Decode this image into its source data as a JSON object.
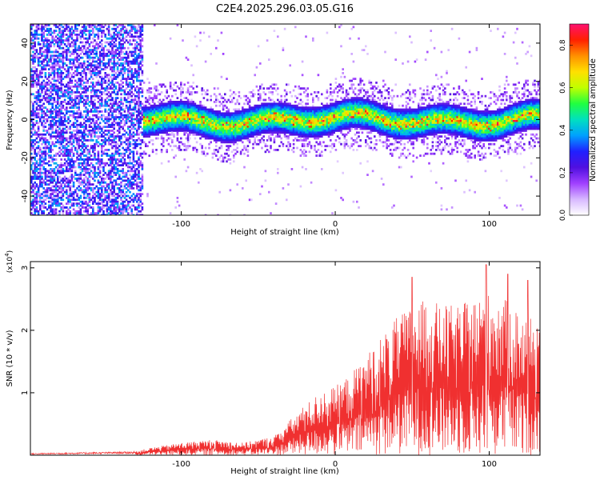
{
  "title": "C2E4.2025.296.03.05.G16",
  "chart_data": [
    {
      "type": "heatmap",
      "name": "spectrogram",
      "xlabel": "Height of straight line (km)",
      "ylabel": "Frequency (Hz)",
      "xlim": [
        -198,
        133
      ],
      "ylim": [
        -50,
        50
      ],
      "xticks": [
        -100,
        0,
        100
      ],
      "yticks": [
        40,
        20,
        0,
        -20,
        -40
      ],
      "xtick_labels": [
        "-100",
        "0",
        "100"
      ],
      "ytick_labels": [
        "40",
        "20",
        "0",
        "-20",
        "-40"
      ],
      "noise_region_x": [
        -198,
        -125
      ],
      "signal_band": {
        "center_hz": 0,
        "half_width_hz": 8,
        "x_range": [
          -125,
          133
        ]
      },
      "colorbar": {
        "label": "Normalized spectral amplitude",
        "range": [
          0.0,
          0.9
        ],
        "ticks": [
          0.0,
          0.2,
          0.4,
          0.6,
          0.8
        ],
        "tick_labels": [
          "0.0",
          "0.2",
          "0.4",
          "0.6",
          "0.8"
        ],
        "colors": [
          "#ffffff",
          "#d7b8ff",
          "#a040ff",
          "#5010e0",
          "#2020ff",
          "#00a0ff",
          "#00e0c0",
          "#20ff40",
          "#c0ff00",
          "#ffe000",
          "#ff9000",
          "#ff2000",
          "#ff1070"
        ]
      }
    },
    {
      "type": "line",
      "name": "snr",
      "xlabel": "Height of straight line (km)",
      "ylabel": "SNR (10 * v/v)",
      "multiplier_label": "(x10",
      "multiplier_exp": "4",
      "multiplier_close": ")",
      "xlim": [
        -198,
        133
      ],
      "ylim": [
        0,
        3.1
      ],
      "xticks": [
        -100,
        0,
        100
      ],
      "yticks": [
        1,
        2,
        3
      ],
      "xtick_labels": [
        "-100",
        "0",
        "100"
      ],
      "ytick_labels": [
        "1",
        "2",
        "3"
      ],
      "line_color": "#f03030",
      "envelope": {
        "x": [
          -198,
          -130,
          -120,
          -100,
          -80,
          -60,
          -50,
          -40,
          -30,
          -20,
          -10,
          0,
          10,
          20,
          30,
          40,
          50,
          60,
          70,
          80,
          90,
          100,
          110,
          120,
          133
        ],
        "y": [
          0.03,
          0.06,
          0.12,
          0.2,
          0.25,
          0.2,
          0.25,
          0.3,
          0.55,
          0.8,
          1.0,
          1.1,
          1.3,
          1.6,
          1.9,
          2.2,
          2.4,
          2.5,
          2.4,
          2.4,
          2.5,
          2.6,
          2.5,
          2.3,
          2.2
        ]
      },
      "peaks": [
        {
          "x": 50,
          "y": 2.85
        },
        {
          "x": 98,
          "y": 3.05
        },
        {
          "x": 112,
          "y": 2.9
        },
        {
          "x": 125,
          "y": 2.8
        }
      ]
    }
  ]
}
